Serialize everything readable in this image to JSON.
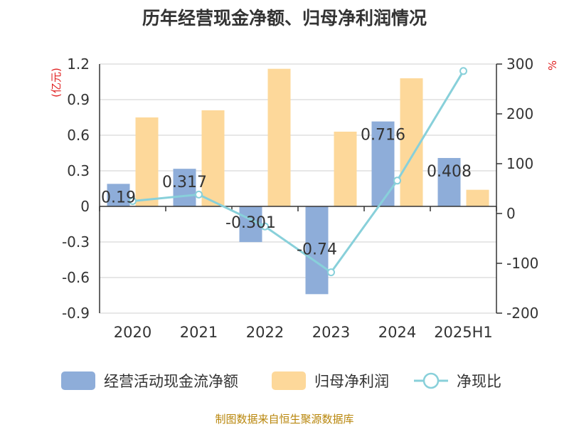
{
  "chart_data": {
    "type": "bar",
    "title": "历年经营现金净额、归母净利润情况",
    "categories": [
      "2020",
      "2021",
      "2022",
      "2023",
      "2024",
      "2025H1"
    ],
    "series": [
      {
        "name": "经营活动现金流净额",
        "type": "bar",
        "axis": "left",
        "values": [
          0.19,
          0.317,
          -0.301,
          -0.74,
          0.716,
          0.408
        ],
        "color": "#8eadd9",
        "labels": [
          "0.19",
          "0.317",
          "-0.301",
          "-0.74",
          "0.716",
          "0.408"
        ]
      },
      {
        "name": "归母净利润",
        "type": "bar",
        "axis": "left",
        "values": [
          0.75,
          0.81,
          1.16,
          0.63,
          1.08,
          0.14
        ],
        "color": "#fdd89a"
      },
      {
        "name": "净现比",
        "type": "line",
        "axis": "right",
        "values": [
          25,
          38,
          -26,
          -118,
          66,
          286
        ],
        "color": "#88d0da"
      }
    ],
    "y_left": {
      "label": "(亿元)",
      "min": -0.9,
      "max": 1.2,
      "ticks": [
        "1.2",
        "0.9",
        "0.6",
        "0.3",
        "0",
        "-0.3",
        "-0.6",
        "-0.9"
      ]
    },
    "y_right": {
      "label": "%",
      "min": -200,
      "max": 300,
      "ticks": [
        "300",
        "200",
        "100",
        "0",
        "-100",
        "-200"
      ]
    },
    "legend_position": "bottom",
    "grid": true,
    "source": "制图数据来自恒生聚源数据库"
  }
}
